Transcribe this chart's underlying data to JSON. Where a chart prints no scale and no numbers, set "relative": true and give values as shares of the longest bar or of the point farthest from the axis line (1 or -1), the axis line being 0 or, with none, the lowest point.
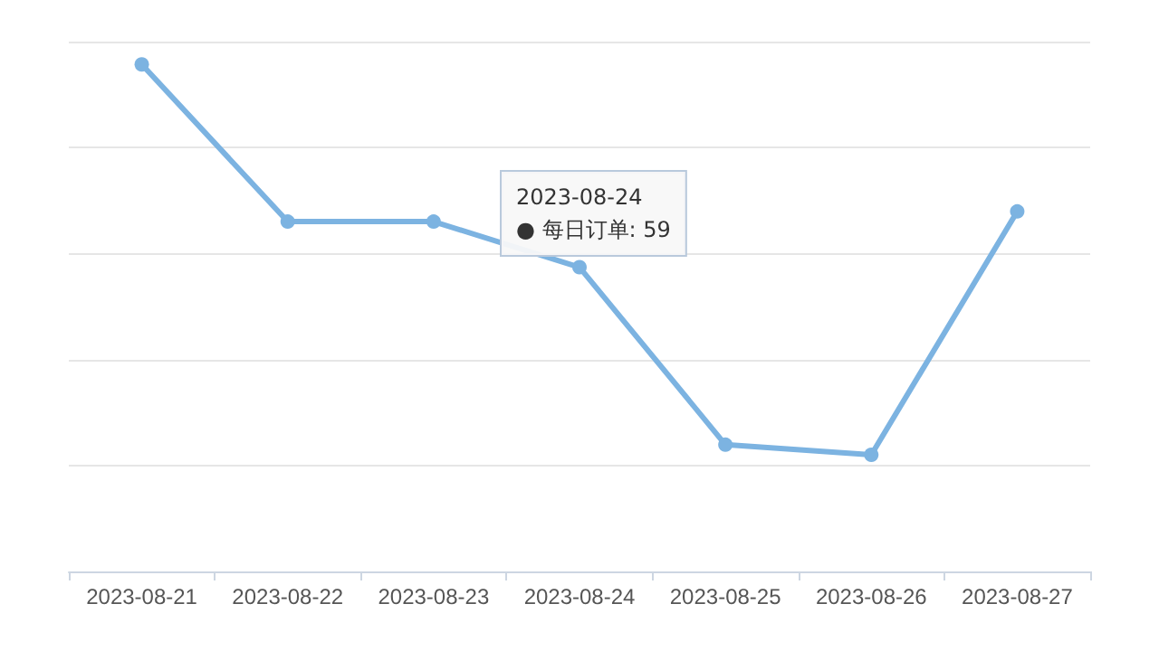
{
  "chart_data": {
    "type": "line",
    "relative": true,
    "categories": [
      "2023-08-21",
      "2023-08-22",
      "2023-08-23",
      "2023-08-24",
      "2023-08-25",
      "2023-08-26",
      "2023-08-27"
    ],
    "series": [
      {
        "color": "#7cb3e1",
        "values": [
          1,
          0.69,
          0.69,
          0.6,
          0.25,
          0.23,
          0.71
        ]
      }
    ],
    "annotations": [
      "2023-08-24\n● 每日订单: 59"
    ],
    "grid": "y",
    "marker": "circle",
    "line_style": "solid",
    "tick_labels": "x"
  }
}
